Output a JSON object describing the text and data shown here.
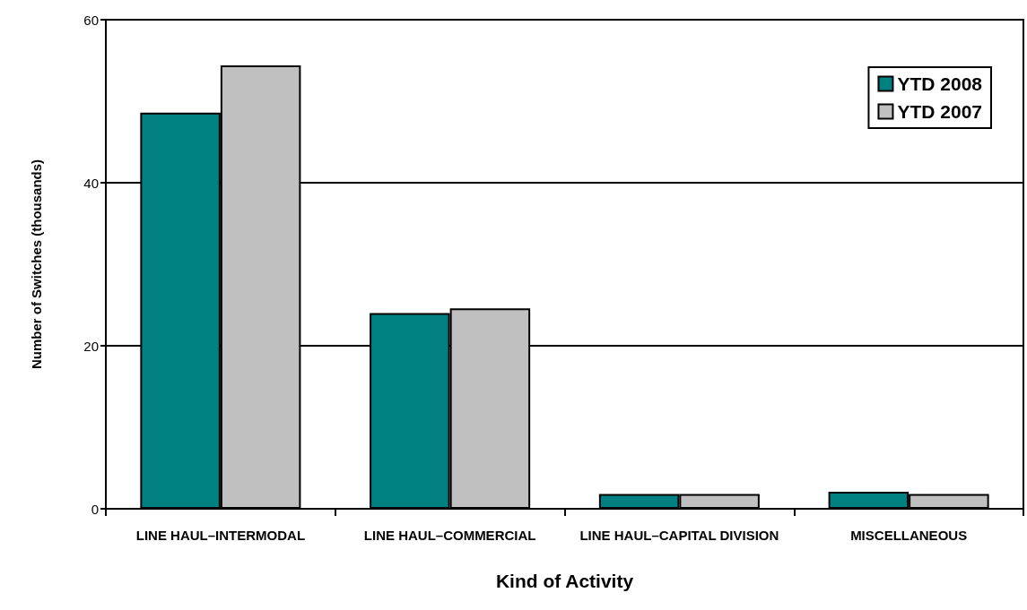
{
  "chart_data": {
    "type": "bar",
    "xlabel": "Kind of Activity",
    "ylabel": "Number of Switches (thousands)",
    "categories": [
      "LINE HAUL–INTERMODAL",
      "LINE HAUL–COMMERCIAL",
      "LINE HAUL–CAPITAL DIVISION",
      "MISCELLANEOUS"
    ],
    "series": [
      {
        "name": "YTD 2008",
        "color": "#008080",
        "values": [
          48.6,
          24.0,
          1.8,
          2.1
        ]
      },
      {
        "name": "YTD 2007",
        "color": "#c0c0c0",
        "values": [
          54.4,
          24.6,
          1.8,
          1.8
        ]
      }
    ],
    "ylim": [
      0,
      60
    ],
    "yticks": [
      0,
      20,
      40,
      60
    ],
    "grid": "y",
    "legend": "top right"
  }
}
